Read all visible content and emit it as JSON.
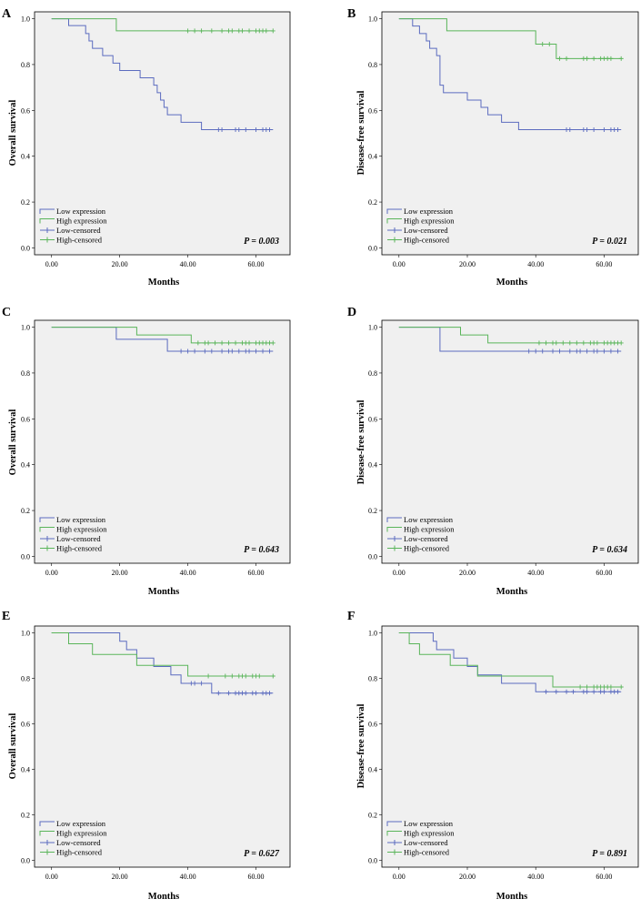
{
  "colors": {
    "low": "#5b6bbf",
    "high": "#5ab55a",
    "plot_bg": "#f0f0f0",
    "frame": "#000000"
  },
  "legend_labels": [
    "Low expression",
    "High expression",
    "Low-censored",
    "High-censored"
  ],
  "chart_data": [
    {
      "panel": "A",
      "type": "line",
      "title": "",
      "xlabel": "Months",
      "ylabel": "Overall survival",
      "xlim": [
        -5,
        70
      ],
      "ylim": [
        -0.03,
        1.03
      ],
      "legend": "bottom-left",
      "x_ticks": [
        0,
        20,
        40,
        60
      ],
      "x_tick_labels": [
        "0.00",
        "20.00",
        "40.00",
        "60.00"
      ],
      "y_ticks": [
        0,
        0.2,
        0.4,
        0.6,
        0.8,
        1.0
      ],
      "y_tick_labels": [
        "0.0",
        "0.2",
        "0.4",
        "0.6",
        "0.8",
        "1.0"
      ],
      "p_value": "P = 0.003",
      "series": [
        {
          "name": "Low expression",
          "censored_name": "Low-censored",
          "color": "#5b6bbf",
          "steps": [
            [
              0,
              1.0
            ],
            [
              5,
              0.97
            ],
            [
              10,
              0.935
            ],
            [
              11,
              0.903
            ],
            [
              12,
              0.871
            ],
            [
              15,
              0.839
            ],
            [
              18,
              0.806
            ],
            [
              20,
              0.774
            ],
            [
              26,
              0.742
            ],
            [
              30,
              0.71
            ],
            [
              31,
              0.677
            ],
            [
              32,
              0.645
            ],
            [
              33,
              0.613
            ],
            [
              34,
              0.581
            ],
            [
              38,
              0.548
            ],
            [
              44,
              0.516
            ]
          ],
          "end": 65,
          "censored": [
            49,
            50,
            54,
            55,
            57,
            60,
            62,
            63,
            64
          ]
        },
        {
          "name": "High expression",
          "censored_name": "High-censored",
          "color": "#5ab55a",
          "steps": [
            [
              0,
              1.0
            ],
            [
              19,
              0.947
            ]
          ],
          "end": 65,
          "censored": [
            40,
            42,
            44,
            47,
            50,
            52,
            53,
            55,
            56,
            58,
            60,
            61,
            62,
            63,
            65
          ]
        }
      ]
    },
    {
      "panel": "B",
      "type": "line",
      "title": "",
      "xlabel": "Months",
      "ylabel": "Disease-free survival",
      "xlim": [
        -5,
        70
      ],
      "ylim": [
        -0.03,
        1.03
      ],
      "legend": "bottom-left",
      "x_ticks": [
        0,
        20,
        40,
        60
      ],
      "x_tick_labels": [
        "0.00",
        "20.00",
        "40.00",
        "60.00"
      ],
      "y_ticks": [
        0,
        0.2,
        0.4,
        0.6,
        0.8,
        1.0
      ],
      "y_tick_labels": [
        "0.0",
        "0.2",
        "0.4",
        "0.6",
        "0.8",
        "1.0"
      ],
      "p_value": "P = 0.021",
      "series": [
        {
          "name": "Low expression",
          "censored_name": "Low-censored",
          "color": "#5b6bbf",
          "steps": [
            [
              0,
              1.0
            ],
            [
              4,
              0.968
            ],
            [
              6,
              0.935
            ],
            [
              8,
              0.903
            ],
            [
              9,
              0.871
            ],
            [
              11,
              0.839
            ],
            [
              12,
              0.71
            ],
            [
              13,
              0.677
            ],
            [
              20,
              0.645
            ],
            [
              24,
              0.613
            ],
            [
              26,
              0.581
            ],
            [
              30,
              0.548
            ],
            [
              35,
              0.516
            ]
          ],
          "end": 65,
          "censored": [
            49,
            50,
            54,
            55,
            57,
            60,
            62,
            63,
            64
          ]
        },
        {
          "name": "High expression",
          "censored_name": "High-censored",
          "color": "#5ab55a",
          "steps": [
            [
              0,
              1.0
            ],
            [
              14,
              0.947
            ],
            [
              40,
              0.889
            ],
            [
              46,
              0.826
            ]
          ],
          "end": 65,
          "censored": [
            42,
            44,
            47,
            49,
            54,
            55,
            57,
            59,
            60,
            61,
            62,
            65
          ]
        }
      ]
    },
    {
      "panel": "C",
      "type": "line",
      "title": "",
      "xlabel": "Months",
      "ylabel": "Overall survival",
      "xlim": [
        -5,
        70
      ],
      "ylim": [
        -0.03,
        1.03
      ],
      "legend": "bottom-left",
      "x_ticks": [
        0,
        20,
        40,
        60
      ],
      "x_tick_labels": [
        "0.00",
        "20.00",
        "40.00",
        "60.00"
      ],
      "y_ticks": [
        0,
        0.2,
        0.4,
        0.6,
        0.8,
        1.0
      ],
      "y_tick_labels": [
        "0.0",
        "0.2",
        "0.4",
        "0.6",
        "0.8",
        "1.0"
      ],
      "p_value": "P = 0.643",
      "series": [
        {
          "name": "Low expression",
          "censored_name": "Low-censored",
          "color": "#5b6bbf",
          "steps": [
            [
              0,
              1.0
            ],
            [
              19,
              0.947
            ],
            [
              34,
              0.895
            ]
          ],
          "end": 65,
          "censored": [
            38,
            40,
            42,
            45,
            47,
            50,
            52,
            53,
            55,
            57,
            58,
            60,
            62,
            64
          ]
        },
        {
          "name": "High expression",
          "censored_name": "High-censored",
          "color": "#5ab55a",
          "steps": [
            [
              0,
              1.0
            ],
            [
              25,
              0.966
            ],
            [
              41,
              0.931
            ]
          ],
          "end": 65,
          "censored": [
            43,
            45,
            46,
            48,
            50,
            52,
            54,
            56,
            57,
            58,
            60,
            61,
            62,
            63,
            64,
            65
          ]
        }
      ]
    },
    {
      "panel": "D",
      "type": "line",
      "title": "",
      "xlabel": "Months",
      "ylabel": "Disease-free survival",
      "xlim": [
        -5,
        70
      ],
      "ylim": [
        -0.03,
        1.03
      ],
      "legend": "bottom-left",
      "x_ticks": [
        0,
        20,
        40,
        60
      ],
      "x_tick_labels": [
        "0.00",
        "20.00",
        "40.00",
        "60.00"
      ],
      "y_ticks": [
        0,
        0.2,
        0.4,
        0.6,
        0.8,
        1.0
      ],
      "y_tick_labels": [
        "0.0",
        "0.2",
        "0.4",
        "0.6",
        "0.8",
        "1.0"
      ],
      "p_value": "P = 0.634",
      "series": [
        {
          "name": "Low expression",
          "censored_name": "Low-censored",
          "color": "#5b6bbf",
          "steps": [
            [
              0,
              1.0
            ],
            [
              12,
              0.895
            ]
          ],
          "end": 65,
          "censored": [
            38,
            40,
            42,
            45,
            47,
            50,
            52,
            53,
            55,
            57,
            58,
            60,
            62,
            64
          ]
        },
        {
          "name": "High expression",
          "censored_name": "High-censored",
          "color": "#5ab55a",
          "steps": [
            [
              0,
              1.0
            ],
            [
              18,
              0.966
            ],
            [
              26,
              0.931
            ]
          ],
          "end": 65,
          "censored": [
            41,
            43,
            45,
            46,
            48,
            50,
            52,
            54,
            56,
            57,
            58,
            60,
            61,
            62,
            63,
            64,
            65
          ]
        }
      ]
    },
    {
      "panel": "E",
      "type": "line",
      "title": "",
      "xlabel": "Months",
      "ylabel": "Overall survival",
      "xlim": [
        -5,
        70
      ],
      "ylim": [
        -0.03,
        1.03
      ],
      "legend": "bottom-left",
      "x_ticks": [
        0,
        20,
        40,
        60
      ],
      "x_tick_labels": [
        "0.00",
        "20.00",
        "40.00",
        "60.00"
      ],
      "y_ticks": [
        0,
        0.2,
        0.4,
        0.6,
        0.8,
        1.0
      ],
      "y_tick_labels": [
        "0.0",
        "0.2",
        "0.4",
        "0.6",
        "0.8",
        "1.0"
      ],
      "p_value": "P = 0.627",
      "series": [
        {
          "name": "Low expression",
          "censored_name": "Low-censored",
          "color": "#5b6bbf",
          "steps": [
            [
              0,
              1.0
            ],
            [
              20,
              0.963
            ],
            [
              22,
              0.926
            ],
            [
              25,
              0.889
            ],
            [
              30,
              0.852
            ],
            [
              35,
              0.815
            ],
            [
              38,
              0.778
            ],
            [
              47,
              0.735
            ]
          ],
          "end": 65,
          "censored": [
            41,
            42,
            44,
            49,
            52,
            54,
            55,
            56,
            57,
            59,
            60,
            62,
            63,
            64
          ]
        },
        {
          "name": "High expression",
          "censored_name": "High-censored",
          "color": "#5ab55a",
          "steps": [
            [
              0,
              1.0
            ],
            [
              5,
              0.952
            ],
            [
              12,
              0.905
            ],
            [
              25,
              0.857
            ],
            [
              40,
              0.81
            ]
          ],
          "end": 65,
          "censored": [
            46,
            51,
            53,
            55,
            56,
            57,
            59,
            60,
            61,
            65
          ]
        }
      ]
    },
    {
      "panel": "F",
      "type": "line",
      "title": "",
      "xlabel": "Months",
      "ylabel": "Disease-free survival",
      "xlim": [
        -5,
        70
      ],
      "ylim": [
        -0.03,
        1.03
      ],
      "legend": "bottom-left",
      "x_ticks": [
        0,
        20,
        40,
        60
      ],
      "x_tick_labels": [
        "0.00",
        "20.00",
        "40.00",
        "60.00"
      ],
      "y_ticks": [
        0,
        0.2,
        0.4,
        0.6,
        0.8,
        1.0
      ],
      "y_tick_labels": [
        "0.0",
        "0.2",
        "0.4",
        "0.6",
        "0.8",
        "1.0"
      ],
      "p_value": "P = 0.891",
      "series": [
        {
          "name": "Low expression",
          "censored_name": "Low-censored",
          "color": "#5b6bbf",
          "steps": [
            [
              0,
              1.0
            ],
            [
              10,
              0.963
            ],
            [
              11,
              0.926
            ],
            [
              16,
              0.889
            ],
            [
              20,
              0.852
            ],
            [
              23,
              0.815
            ],
            [
              30,
              0.778
            ],
            [
              40,
              0.741
            ]
          ],
          "end": 65,
          "censored": [
            43,
            46,
            49,
            51,
            54,
            55,
            57,
            59,
            60,
            62,
            63,
            64
          ]
        },
        {
          "name": "High expression",
          "censored_name": "High-censored",
          "color": "#5ab55a",
          "steps": [
            [
              0,
              1.0
            ],
            [
              3,
              0.952
            ],
            [
              6,
              0.905
            ],
            [
              15,
              0.857
            ],
            [
              23,
              0.81
            ],
            [
              45,
              0.762
            ]
          ],
          "end": 65,
          "censored": [
            53,
            55,
            57,
            58,
            59,
            60,
            61,
            62,
            65
          ]
        }
      ]
    }
  ]
}
